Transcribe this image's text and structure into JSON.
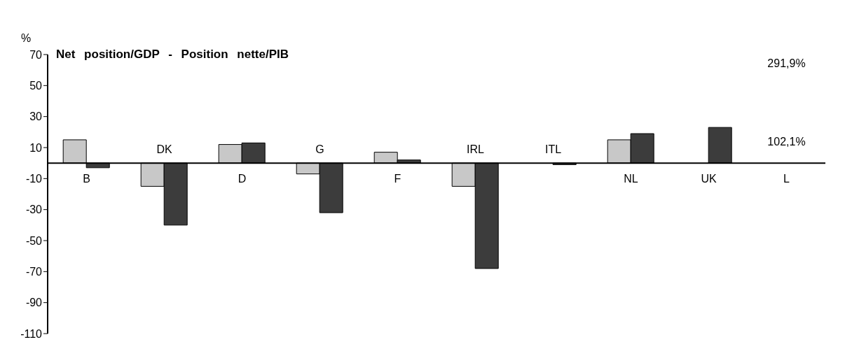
{
  "chart_data": {
    "type": "bar",
    "title": "Net position/GDP - Position nette/PIB",
    "ylabel": "%",
    "categories": [
      "B",
      "DK",
      "D",
      "G",
      "F",
      "IRL",
      "ITL",
      "NL",
      "UK",
      "L"
    ],
    "series": [
      {
        "color": "#c8c8c8",
        "values": [
          15,
          -15,
          12,
          -7,
          7,
          -15,
          0,
          15,
          0,
          null
        ]
      },
      {
        "color": "#3c3c3c",
        "values": [
          -3,
          -40,
          13,
          -32,
          2,
          -68,
          -1,
          19,
          23,
          null
        ]
      }
    ],
    "annotations": [
      "291,9%",
      "102,1%"
    ],
    "ylim": [
      -110,
      70
    ],
    "yticks": [
      -110,
      -90,
      -70,
      -50,
      -30,
      -10,
      10,
      30,
      50,
      70
    ]
  }
}
